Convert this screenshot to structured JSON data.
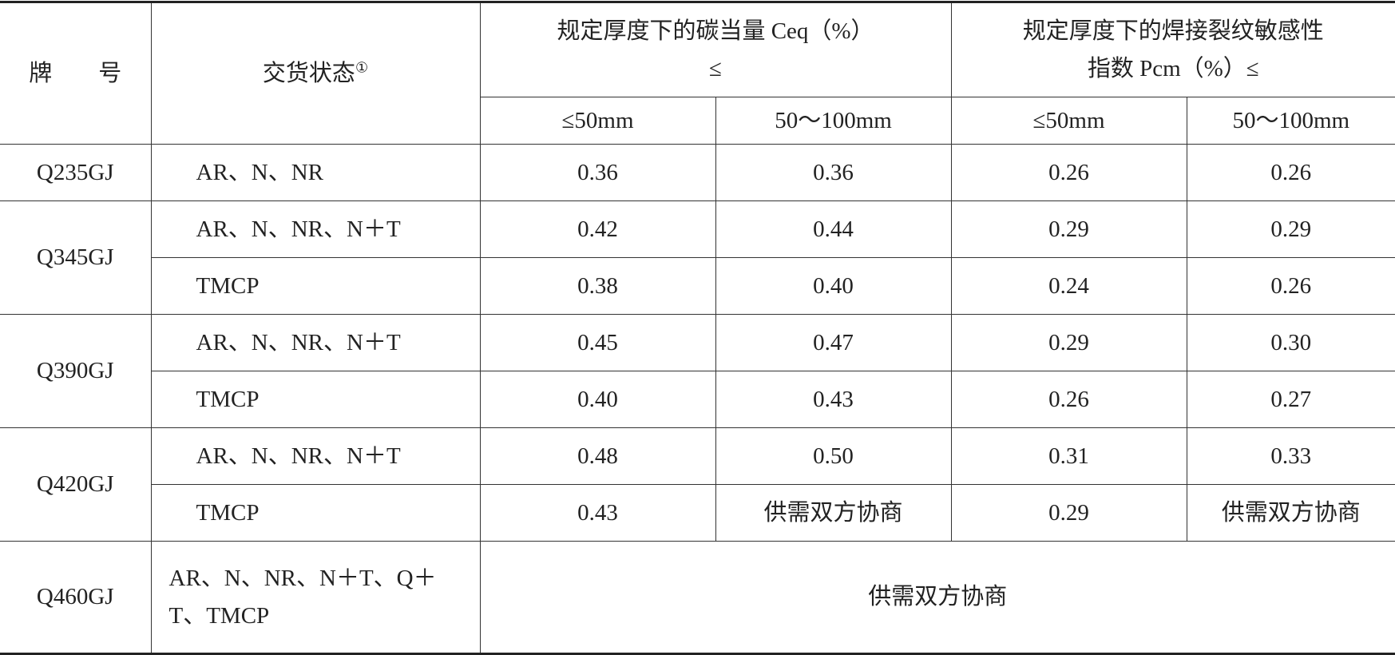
{
  "header": {
    "grade": "牌　　号",
    "state": "交货状态",
    "state_note": "①",
    "ceq_title": "规定厚度下的碳当量 Ceq（%）",
    "ceq_le": "≤",
    "pcm_title": "规定厚度下的焊接裂纹敏感性",
    "pcm_sub": "指数 Pcm（%）≤",
    "thickness": [
      "≤50mm",
      "50～100mm",
      "≤50mm",
      "50～100mm"
    ]
  },
  "groups": [
    {
      "grade": "Q235GJ",
      "rows": [
        [
          "AR、N、NR",
          "0.36",
          "0.36",
          "0.26",
          "0.26"
        ]
      ]
    },
    {
      "grade": "Q345GJ",
      "rows": [
        [
          "AR、N、NR、N＋T",
          "0.42",
          "0.44",
          "0.29",
          "0.29"
        ],
        [
          "TMCP",
          "0.38",
          "0.40",
          "0.24",
          "0.26"
        ]
      ]
    },
    {
      "grade": "Q390GJ",
      "rows": [
        [
          "AR、N、NR、N＋T",
          "0.45",
          "0.47",
          "0.29",
          "0.30"
        ],
        [
          "TMCP",
          "0.40",
          "0.43",
          "0.26",
          "0.27"
        ]
      ]
    },
    {
      "grade": "Q420GJ",
      "rows": [
        [
          "AR、N、NR、N＋T",
          "0.48",
          "0.50",
          "0.31",
          "0.33"
        ],
        [
          "TMCP",
          "0.43",
          "供需双方协商",
          "0.29",
          "供需双方协商"
        ]
      ]
    }
  ],
  "last": {
    "grade": "Q460GJ",
    "state": "AR、N、NR、N＋T、Q＋T、TMCP",
    "note": "供需双方协商"
  }
}
